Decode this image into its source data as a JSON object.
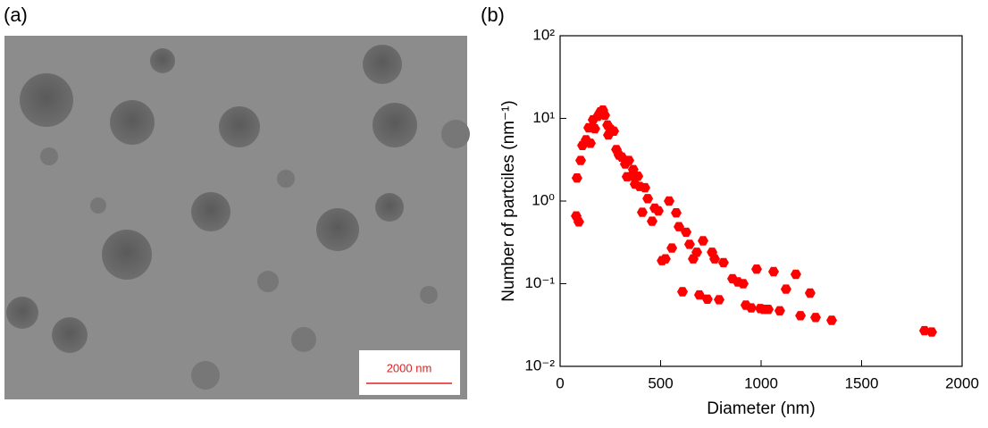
{
  "panel_a": {
    "label": "(a)",
    "scale_bar": "2000 nm"
  },
  "chart_data": {
    "type": "scatter",
    "label": "(b)",
    "x_label": "Diameter (nm)",
    "y_label": "Number of partciles (nm⁻¹)",
    "xlim": [
      0,
      2000
    ],
    "xticks": [
      0,
      500,
      1000,
      1500,
      2000
    ],
    "ylim": [
      0.01,
      100
    ],
    "log_y": true,
    "yticks": [
      {
        "value": 0.01,
        "label": "10⁻²"
      },
      {
        "value": 0.1,
        "label": "10⁻¹"
      },
      {
        "value": 1,
        "label": "10⁰"
      },
      {
        "value": 10,
        "label": "10¹"
      },
      {
        "value": 100,
        "label": "10²"
      }
    ],
    "color": "#ff0000",
    "x": [
      84,
      80,
      93,
      102,
      111,
      129,
      142,
      151,
      164,
      173,
      187,
      200,
      213,
      222,
      236,
      240,
      253,
      267,
      280,
      293,
      307,
      324,
      333,
      342,
      356,
      364,
      373,
      387,
      396,
      409,
      422,
      436,
      458,
      471,
      489,
      507,
      524,
      542,
      556,
      578,
      591,
      609,
      627,
      644,
      662,
      680,
      693,
      711,
      733,
      756,
      769,
      791,
      813,
      858,
      884,
      911,
      924,
      951,
      978,
      996,
      1013,
      1036,
      1062,
      1093,
      1124,
      1173,
      1196,
      1244,
      1271,
      1351,
      1813,
      1849
    ],
    "y": [
      1.9,
      0.66,
      0.56,
      3.1,
      4.7,
      5.5,
      7.7,
      5.0,
      9.6,
      7.5,
      10.6,
      12,
      12.6,
      10.9,
      8.3,
      6.3,
      7.3,
      7.0,
      4.2,
      3.6,
      3.4,
      2.8,
      1.97,
      3.1,
      2.0,
      2.4,
      1.6,
      2.0,
      1.5,
      0.73,
      1.45,
      1.07,
      0.57,
      0.82,
      0.76,
      0.19,
      0.2,
      1.0,
      0.27,
      0.72,
      0.49,
      0.08,
      0.42,
      0.3,
      0.2,
      0.24,
      0.073,
      0.33,
      0.065,
      0.24,
      0.2,
      0.064,
      0.18,
      0.115,
      0.105,
      0.1,
      0.055,
      0.051,
      0.15,
      0.05,
      0.049,
      0.049,
      0.14,
      0.047,
      0.086,
      0.13,
      0.041,
      0.077,
      0.039,
      0.036,
      0.027,
      0.026
    ]
  }
}
